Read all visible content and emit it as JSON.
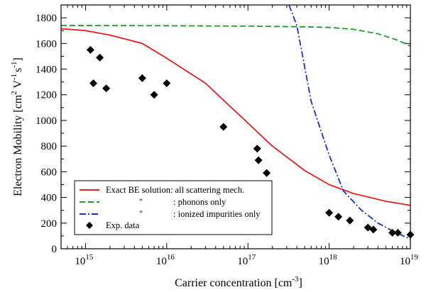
{
  "chart_data": {
    "type": "line",
    "xlabel": "Carrier concentration [cm",
    "xlabel_sup": "-3",
    "xlabel_end": "]",
    "ylabel_parts": [
      "Electron Mobility [cm",
      "2",
      " V",
      "-1",
      "s",
      "-1",
      "]"
    ],
    "x_scale": "log",
    "xlim": [
      500000000000000.0,
      1e+19
    ],
    "ylim": [
      0,
      1900
    ],
    "x_ticks": [
      {
        "value": 1000000000000000.0,
        "base": "10",
        "exp": "15"
      },
      {
        "value": 1e+16,
        "base": "10",
        "exp": "16"
      },
      {
        "value": 1e+17,
        "base": "10",
        "exp": "17"
      },
      {
        "value": 1e+18,
        "base": "10",
        "exp": "18"
      },
      {
        "value": 1e+19,
        "base": "10",
        "exp": "19"
      }
    ],
    "y_ticks": [
      0,
      200,
      400,
      600,
      800,
      1000,
      1200,
      1400,
      1600,
      1800
    ],
    "grid": false,
    "legend_position": "lower-left",
    "series": [
      {
        "name": "Exact BE solution: all scattering mech.",
        "style": "solid",
        "color": "#e02020",
        "points": [
          [
            500000000000000.0,
            1715
          ],
          [
            1000000000000000.0,
            1700
          ],
          [
            2000000000000000.0,
            1665
          ],
          [
            5000000000000000.0,
            1600
          ],
          [
            1e+16,
            1485
          ],
          [
            3e+16,
            1290
          ],
          [
            1e+17,
            980
          ],
          [
            2e+17,
            800
          ],
          [
            5e+17,
            610
          ],
          [
            1e+18,
            500
          ],
          [
            2e+18,
            430
          ],
          [
            5e+18,
            370
          ],
          [
            1e+19,
            338
          ]
        ]
      },
      {
        "name": "phonons only",
        "legend_quote": "\"",
        "legend_colon": ": phonons only",
        "style": "dashed",
        "color": "#1f9a2f",
        "points": [
          [
            500000000000000.0,
            1740
          ],
          [
            1e+16,
            1738
          ],
          [
            1e+17,
            1735
          ],
          [
            5e+17,
            1730
          ],
          [
            1e+18,
            1725
          ],
          [
            2e+18,
            1710
          ],
          [
            4e+18,
            1675
          ],
          [
            7e+18,
            1625
          ],
          [
            1e+19,
            1580
          ]
        ]
      },
      {
        "name": "ionized impurities only",
        "legend_quote": "\"",
        "legend_colon": ": ionized impurities only",
        "style": "dashdot",
        "color": "#1a2fd0",
        "points": [
          [
            3.2e+17,
            1900
          ],
          [
            4e+17,
            1740
          ],
          [
            6e+17,
            1150
          ],
          [
            1e+18,
            730
          ],
          [
            1.5e+18,
            450
          ],
          [
            2.5e+18,
            300
          ],
          [
            4e+18,
            200
          ],
          [
            6e+18,
            140
          ],
          [
            1e+19,
            75
          ]
        ]
      }
    ],
    "scatter": {
      "name": "Exp. data",
      "color": "#000000",
      "points": [
        [
          1150000000000000.0,
          1550
        ],
        [
          1250000000000000.0,
          1290
        ],
        [
          1500000000000000.0,
          1490
        ],
        [
          1800000000000000.0,
          1250
        ],
        [
          5000000000000000.0,
          1330
        ],
        [
          7000000000000000.0,
          1200
        ],
        [
          1e+16,
          1290
        ],
        [
          5e+16,
          950
        ],
        [
          1.3e+17,
          780
        ],
        [
          1.35e+17,
          690
        ],
        [
          1.7e+17,
          590
        ],
        [
          1e+18,
          280
        ],
        [
          1.3e+18,
          250
        ],
        [
          1.8e+18,
          220
        ],
        [
          3e+18,
          165
        ],
        [
          3.5e+18,
          150
        ],
        [
          6e+18,
          125
        ],
        [
          7e+18,
          125
        ],
        [
          1e+19,
          110
        ]
      ]
    }
  }
}
